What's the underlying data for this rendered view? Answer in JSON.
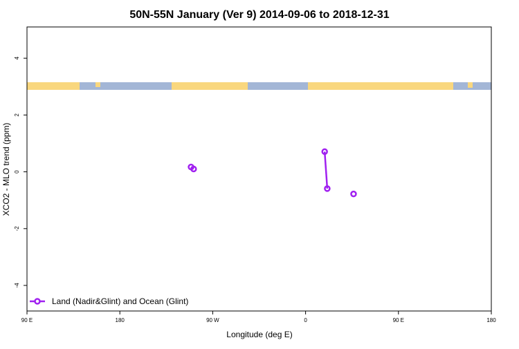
{
  "chart_data": {
    "type": "line",
    "title": "50N-55N January (Ver 9)   2014-09-06 to 2018-12-31",
    "x_label": "Longitude (deg E)",
    "y_label": "XCO2 - MLO trend (ppm)",
    "x": [
      -111,
      -108.5,
      null,
      18.5,
      21,
      null,
      46.5
    ],
    "series": [
      {
        "name": "Land (Nadir&Glint) and Ocean (Glint)",
        "color": "#a020f0",
        "values": [
          0.17,
          0.1,
          null,
          0.71,
          -0.59,
          null,
          -0.78
        ]
      }
    ],
    "xlim": [
      -270,
      180
    ],
    "xticks": [
      {
        "value": -270,
        "label": "90 E"
      },
      {
        "value": -180,
        "label": "180"
      },
      {
        "value": -90,
        "label": "90 W"
      },
      0,
      {
        "value": 90,
        "label": "90 E"
      },
      180
    ],
    "ylim": [
      -4.9,
      5.1
    ],
    "yticks": [
      -4,
      -2,
      0,
      2,
      4
    ],
    "legend": "bottom-left"
  }
}
